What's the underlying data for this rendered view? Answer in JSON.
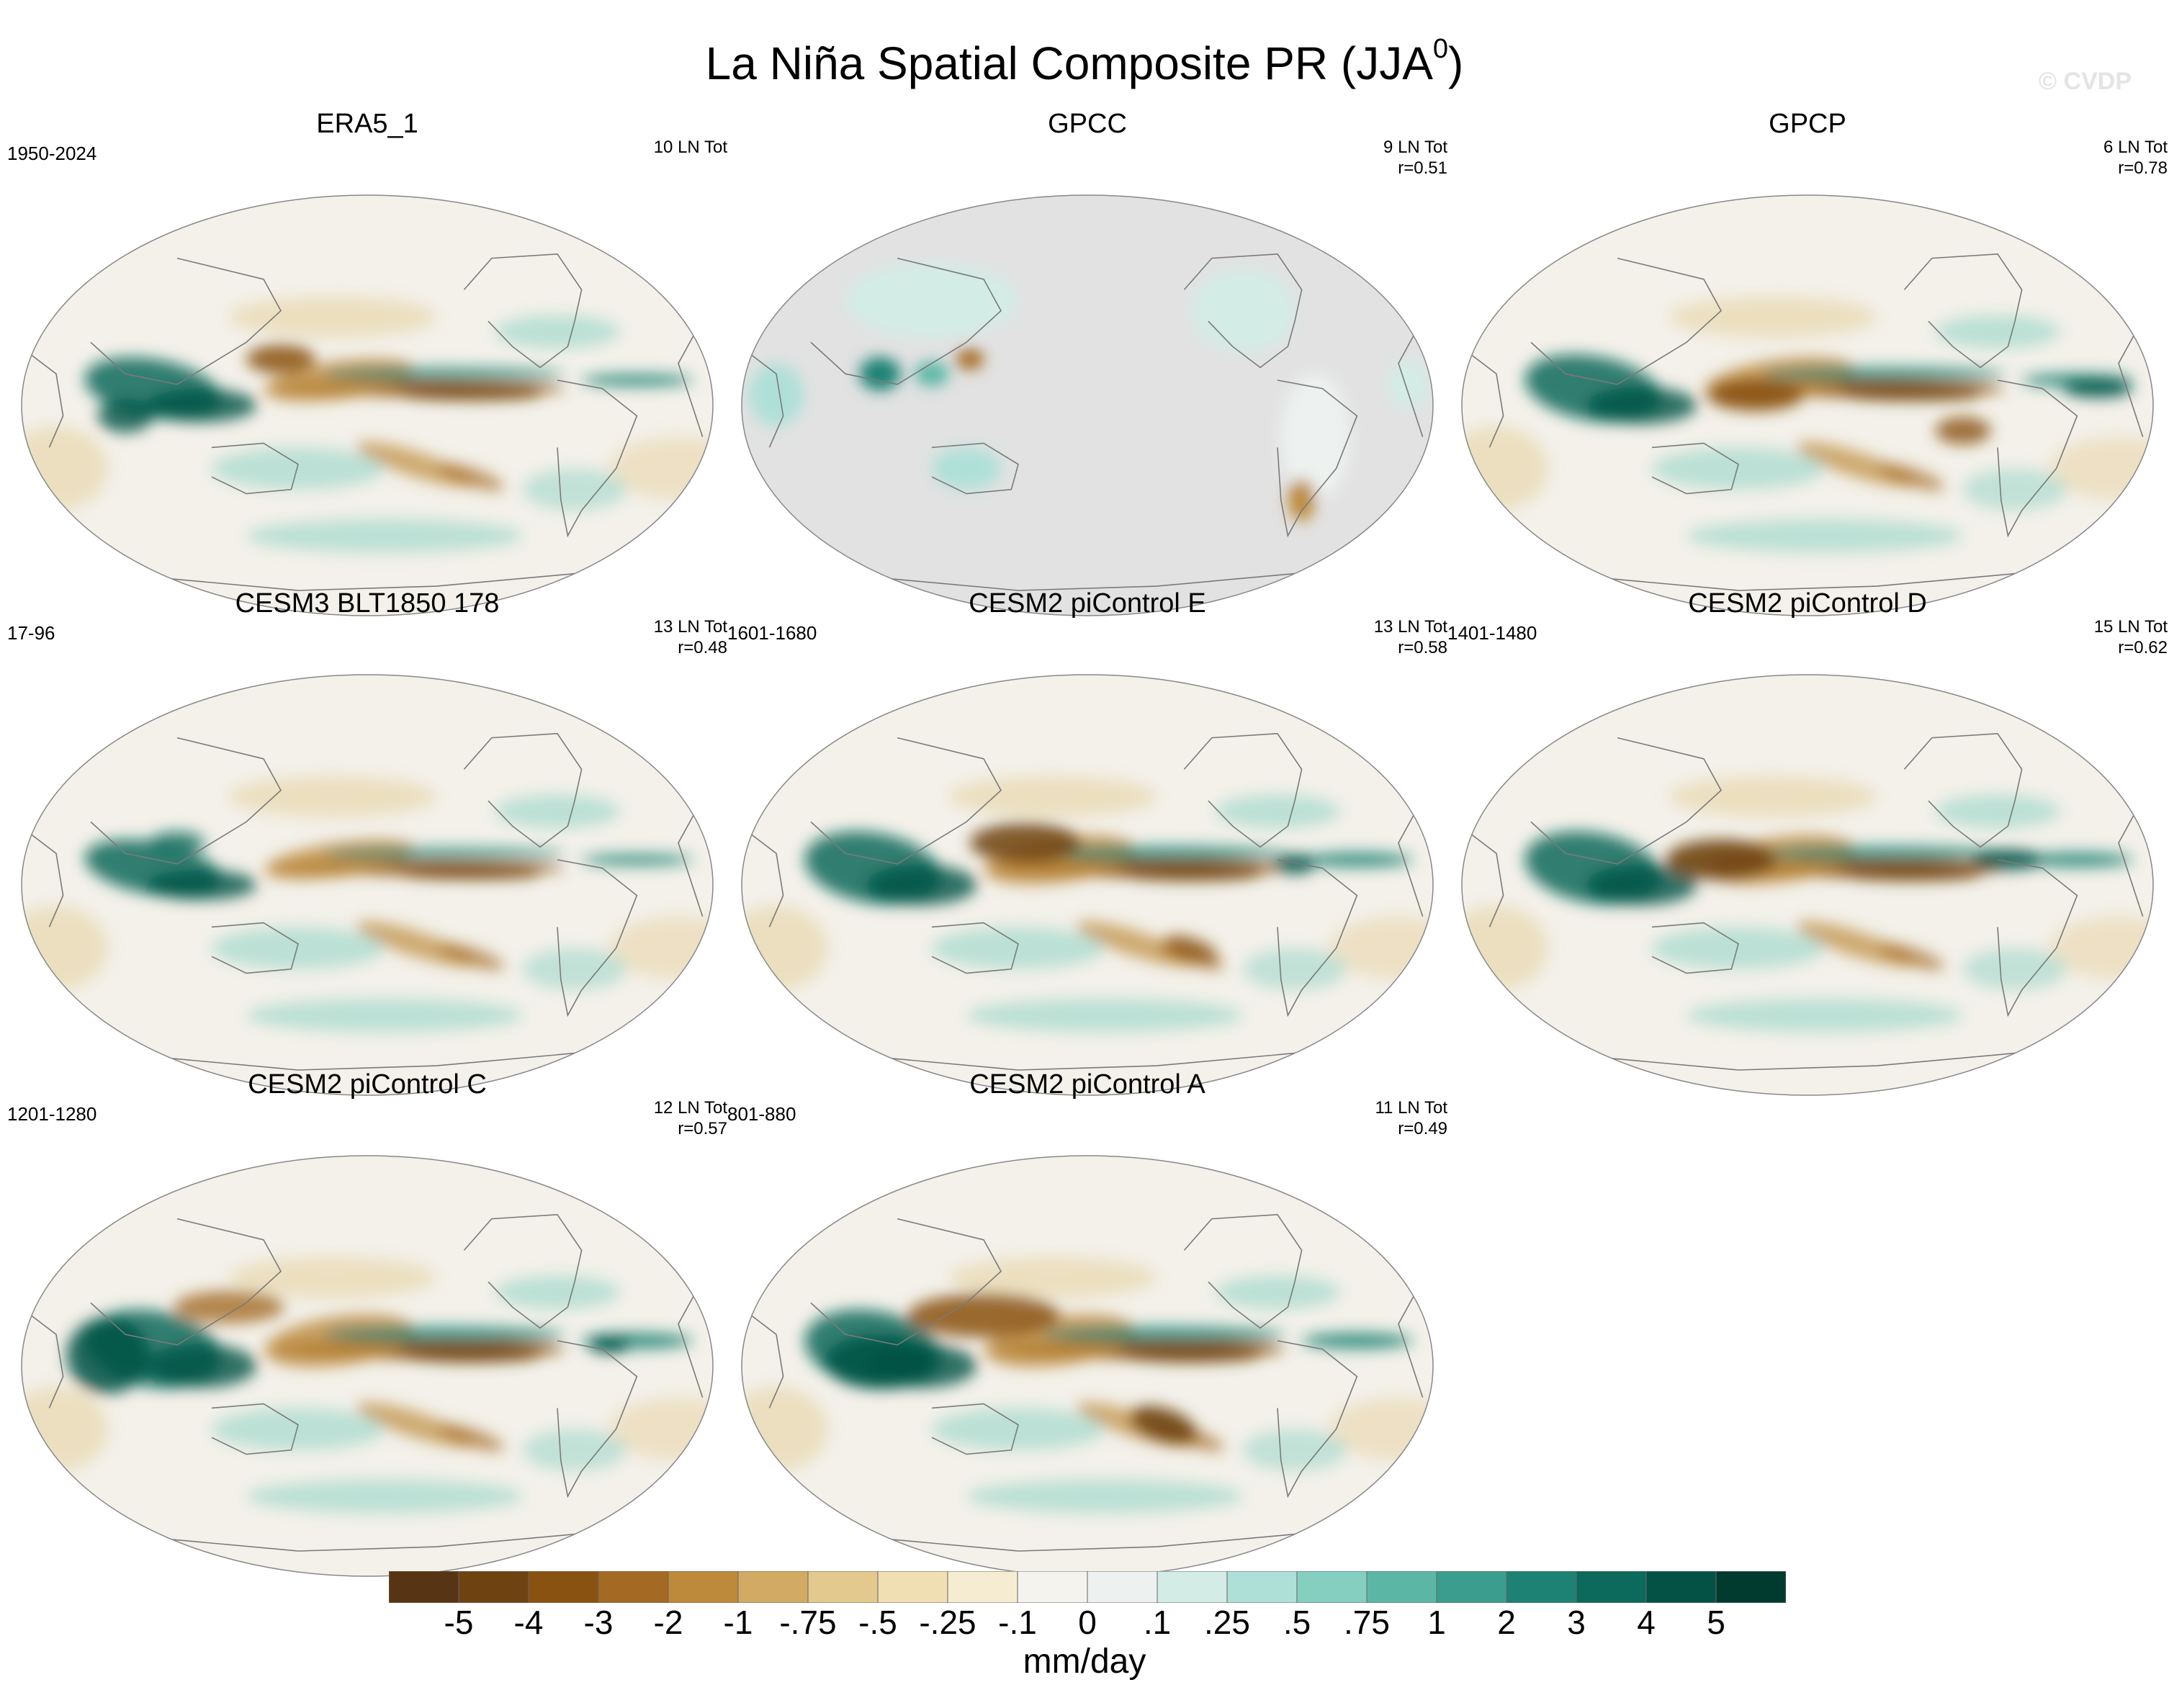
{
  "figure": {
    "title": "La Niña Spatial Composite PR (JJA",
    "title_superscript": "0",
    "title_close": ")",
    "watermark": "© CVDP"
  },
  "panels": [
    {
      "id": "era5",
      "title": "ERA5_1",
      "period": "1950-2024",
      "events": "10 LN Tot",
      "corr": "",
      "coverage": "global"
    },
    {
      "id": "gpcc",
      "title": "GPCC",
      "period": "",
      "events": "9 LN Tot",
      "corr": "r=0.51",
      "coverage": "land"
    },
    {
      "id": "gpcp",
      "title": "GPCP",
      "period": "",
      "events": "6 LN Tot",
      "corr": "r=0.78",
      "coverage": "global"
    },
    {
      "id": "cesm3",
      "title": "CESM3 BLT1850 178",
      "period": "17-96",
      "events": "13 LN Tot",
      "corr": "r=0.48",
      "coverage": "global"
    },
    {
      "id": "cesm2e",
      "title": "CESM2 piControl E",
      "period": "1601-1680",
      "events": "13 LN Tot",
      "corr": "r=0.58",
      "coverage": "global"
    },
    {
      "id": "cesm2d",
      "title": "CESM2 piControl D",
      "period": "1401-1480",
      "events": "15 LN Tot",
      "corr": "r=0.62",
      "coverage": "global"
    },
    {
      "id": "cesm2c",
      "title": "CESM2 piControl C",
      "period": "1201-1280",
      "events": "12 LN Tot",
      "corr": "r=0.57",
      "coverage": "global"
    },
    {
      "id": "cesm2a",
      "title": "CESM2 piControl A",
      "period": "801-880",
      "events": "11 LN Tot",
      "corr": "r=0.49",
      "coverage": "global"
    }
  ],
  "colorbar": {
    "units": "mm/day",
    "tick_labels": [
      "-5",
      "-4",
      "-3",
      "-2",
      "-1",
      "-.75",
      "-.5",
      "-.25",
      "-.1",
      "0",
      ".1",
      ".25",
      ".5",
      ".75",
      "1",
      "2",
      "3",
      "4",
      "5"
    ],
    "colors": [
      "#573413",
      "#6f4212",
      "#8a5211",
      "#a46a24",
      "#bd8a3c",
      "#d2aa63",
      "#e3c98e",
      "#efdfb3",
      "#f6ecd2",
      "#f5f3ee",
      "#edf2f0",
      "#d3ece6",
      "#afe0d7",
      "#85cfc1",
      "#5cb6a6",
      "#3b9d8e",
      "#1d8274",
      "#0b6a5c",
      "#035245",
      "#013a2f"
    ]
  }
}
